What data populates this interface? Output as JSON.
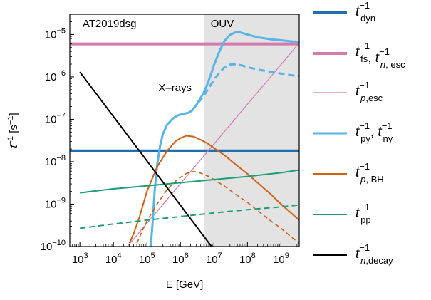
{
  "chart_data": {
    "type": "line",
    "title": "",
    "xlabel": "E [GeV]",
    "ylabel": "t⁻¹ [s⁻¹]",
    "x_scale": "log",
    "y_scale": "log",
    "xlim": [
      500,
      3500000000.0
    ],
    "ylim": [
      1e-10,
      3e-05
    ],
    "x_ticks": [
      1000.0,
      10000.0,
      100000.0,
      1000000.0,
      10000000.0,
      100000000.0,
      1000000000.0
    ],
    "x_tick_labels": [
      {
        "base": "10",
        "exp": "3"
      },
      {
        "base": "10",
        "exp": "4"
      },
      {
        "base": "10",
        "exp": "5"
      },
      {
        "base": "10",
        "exp": "6"
      },
      {
        "base": "10",
        "exp": "7"
      },
      {
        "base": "10",
        "exp": "8"
      },
      {
        "base": "10",
        "exp": "9"
      }
    ],
    "y_ticks": [
      1e-10,
      1e-09,
      1e-08,
      1e-07,
      1e-06,
      1e-05
    ],
    "y_tick_labels": [
      {
        "base": "10",
        "exp": "−10"
      },
      {
        "base": "10",
        "exp": "−9"
      },
      {
        "base": "10",
        "exp": "−8"
      },
      {
        "base": "10",
        "exp": "−7"
      },
      {
        "base": "10",
        "exp": "−6"
      },
      {
        "base": "10",
        "exp": "−5"
      }
    ],
    "grid": false,
    "legend_position": "right, outside the plot",
    "shaded_band": {
      "x_from": 5000000.0,
      "x_to": 3500000000.0,
      "color": "#e3e3e3"
    },
    "annotations": [
      {
        "text": "AT2019dsg",
        "x": 1200.0,
        "y": 1.5e-05
      },
      {
        "text": "OUV",
        "x": 8000000.0,
        "y": 1.5e-05
      },
      {
        "text": "X–rays",
        "x": 220000.0,
        "y": 4.6e-07
      }
    ],
    "series": [
      {
        "key": "t_dyn",
        "color": "#1f6eb0",
        "width": 4,
        "dash": "",
        "x": [
          500,
          3500000000.0
        ],
        "y": [
          1.8e-08,
          1.8e-08
        ]
      },
      {
        "key": "t_fs_esc",
        "color": "#d379ac",
        "width": 4,
        "dash": "",
        "x": [
          500,
          3500000000.0
        ],
        "y": [
          6e-06,
          6e-06
        ]
      },
      {
        "key": "t_p_esc",
        "color": "#d379ac",
        "width": 1.2,
        "dash": "",
        "x": [
          26000.0,
          3500000000.0
        ],
        "y": [
          1e-10,
          6.3e-06
        ]
      },
      {
        "key": "t_pgamma",
        "color": "#56b4e9",
        "width": 3,
        "dash": "",
        "x": [
          130000.0,
          145000.0,
          170000.0,
          200000.0,
          250000.0,
          300000.0,
          400000.0,
          600000.0,
          800000.0,
          1000000.0,
          1300000.0,
          1700000.0,
          2200000.0,
          3000000.0,
          4000000.0,
          5000000.0,
          6000000.0,
          8000000.0,
          10000000.0,
          15000000.0,
          20000000.0,
          30000000.0,
          45000000.0,
          60000000.0,
          100000000.0,
          200000000.0,
          500000000.0,
          1000000000.0,
          2000000000.0,
          3500000000.0
        ],
        "y": [
          1e-10,
          3e-10,
          2e-09,
          8e-09,
          2.5e-08,
          4.5e-08,
          7.5e-08,
          1.05e-07,
          1.22e-07,
          1.3e-07,
          1.36e-07,
          1.42e-07,
          1.6e-07,
          2.2e-07,
          3.2e-07,
          4.3e-07,
          6e-07,
          1.1e-06,
          1.9e-06,
          4.2e-06,
          6.8e-06,
          9.8e-06,
          1.13e-05,
          1.12e-05,
          1e-05,
          8.6e-06,
          7.7e-06,
          7.3e-06,
          6.9e-06,
          6.7e-06
        ]
      },
      {
        "key": "t_pgamma_dashed",
        "color": "#56b4e9",
        "width": 3,
        "dash": "9 5",
        "x": [
          2200000.0,
          3000000.0,
          4000000.0,
          5000000.0,
          6000000.0,
          8000000.0,
          10000000.0,
          15000000.0,
          20000000.0,
          30000000.0,
          45000000.0,
          70000000.0,
          100000000.0,
          200000000.0,
          500000000.0,
          1000000000.0,
          2000000000.0,
          3500000000.0
        ],
        "y": [
          1.6e-07,
          2.2e-07,
          2.9e-07,
          3.6e-07,
          4.5e-07,
          6.5e-07,
          8.5e-07,
          1.3e-06,
          1.65e-06,
          1.95e-06,
          2e-06,
          1.85e-06,
          1.7e-06,
          1.5e-06,
          1.3e-06,
          1.2e-06,
          1.1e-06,
          1.05e-06
        ]
      },
      {
        "key": "t_p_BH",
        "color": "#d35f0f",
        "width": 2,
        "dash": "",
        "x": [
          30000.0,
          40000.0,
          60000.0,
          100000.0,
          200000.0,
          400000.0,
          700000.0,
          1000000.0,
          1500000.0,
          2500000.0,
          4000000.0,
          7000000.0,
          10000000.0,
          20000000.0,
          50000000.0,
          100000000.0,
          200000000.0,
          500000000.0,
          1000000000.0,
          2000000000.0,
          3500000000.0
        ],
        "y": [
          1.2e-10,
          2e-10,
          5e-10,
          2e-09,
          7.5e-09,
          1.8e-08,
          3e-08,
          3.6e-08,
          4.1e-08,
          3.9e-08,
          3.3e-08,
          2.6e-08,
          2.1e-08,
          1.45e-08,
          8e-09,
          5.2e-09,
          3.2e-09,
          1.7e-09,
          1e-09,
          6.2e-10,
          4.2e-10
        ]
      },
      {
        "key": "t_p_BH_dashed",
        "color": "#d35f0f",
        "width": 1.6,
        "dash": "6 4",
        "x": [
          50000.0,
          70000.0,
          100000.0,
          200000.0,
          400000.0,
          800000.0,
          1500000.0,
          2500000.0,
          4000000.0,
          7000000.0,
          10000000.0,
          20000000.0,
          50000000.0,
          100000000.0,
          200000000.0,
          500000000.0,
          1000000000.0,
          2000000000.0,
          3500000000.0
        ],
        "y": [
          1.2e-10,
          2.2e-10,
          4e-10,
          1e-09,
          2.2e-09,
          3.8e-09,
          5.3e-09,
          5.9e-09,
          5.4e-09,
          4.5e-09,
          3.8e-09,
          2.7e-09,
          1.6e-09,
          1.1e-09,
          7e-10,
          4e-10,
          2.7e-10,
          1.7e-10,
          1.2e-10
        ]
      },
      {
        "key": "t_pp",
        "color": "#1b9e77",
        "width": 2,
        "dash": "",
        "x": [
          1000.0,
          10000.0,
          100000.0,
          1000000.0,
          10000000.0,
          100000000.0,
          1000000000.0,
          3500000000.0
        ],
        "y": [
          1.85e-09,
          2.3e-09,
          2.7e-09,
          3.2e-09,
          3.8e-09,
          4.5e-09,
          5.5e-09,
          6.4e-09
        ]
      },
      {
        "key": "t_pp_dashed",
        "color": "#1b9e77",
        "width": 2,
        "dash": "8 5",
        "x": [
          1000.0,
          10000.0,
          100000.0,
          1000000.0,
          10000000.0,
          100000000.0,
          1000000000.0,
          3500000000.0
        ],
        "y": [
          2.7e-10,
          3.4e-10,
          4.2e-10,
          5.1e-10,
          6.2e-10,
          7.4e-10,
          8.6e-10,
          9.6e-10
        ]
      },
      {
        "key": "t_n_decay",
        "color": "#000000",
        "width": 2,
        "dash": "",
        "x": [
          1000.0,
          8500000.0
        ],
        "y": [
          1.3e-06,
          1e-10
        ]
      }
    ],
    "legend": [
      {
        "sym": "dyn",
        "color": "#1f6eb0",
        "width": 4,
        "label": "t_dyn^-1"
      },
      {
        "sym": "fs_n_esc",
        "color": "#d379ac",
        "width": 4,
        "label": "t_fs^-1, t_n,esc^-1"
      },
      {
        "sym": "p_esc",
        "color": "#d379ac",
        "width": 1.2,
        "label": "t_p,esc^-1"
      },
      {
        "sym": "pgamma",
        "color": "#56b4e9",
        "width": 3,
        "label": "t_pγ^-1, t_nγ^-1"
      },
      {
        "sym": "p_BH",
        "color": "#d35f0f",
        "width": 2,
        "label": "t_p,BH^-1"
      },
      {
        "sym": "pp",
        "color": "#1b9e77",
        "width": 2,
        "label": "t_pp^-1"
      },
      {
        "sym": "n_decay",
        "color": "#000000",
        "width": 2,
        "label": "t_n,decay^-1"
      }
    ]
  }
}
